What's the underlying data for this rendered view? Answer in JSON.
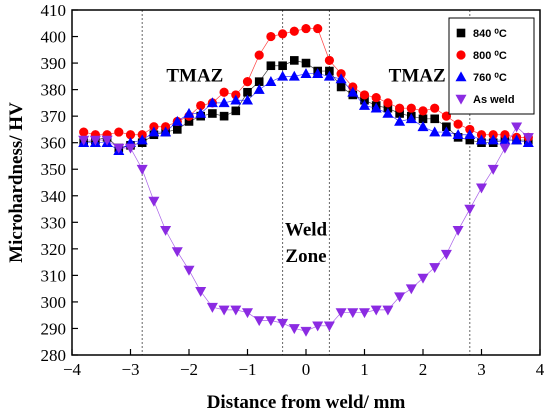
{
  "chart_data": {
    "type": "scatter",
    "xlabel": "Distance from weld/ mm",
    "ylabel": "Microhardness/ HV",
    "xlim": [
      -4,
      4
    ],
    "ylim": [
      280,
      410
    ],
    "xticks": [
      -4,
      -3,
      -2,
      -1,
      0,
      1,
      2,
      3,
      4
    ],
    "yticks": [
      280,
      290,
      300,
      310,
      320,
      330,
      340,
      350,
      360,
      370,
      380,
      390,
      400,
      410
    ],
    "grid": false,
    "legend_position": "top-right",
    "vlines": [
      -2.8,
      -0.4,
      0.4,
      2.8
    ],
    "annotations": [
      {
        "text": "TMAZ",
        "x": -1.9,
        "y": 383
      },
      {
        "text": "TMAZ",
        "x": 1.9,
        "y": 383
      },
      {
        "text": "Weld",
        "x": 0,
        "y": 325
      },
      {
        "text": "Zone",
        "x": 0,
        "y": 315
      }
    ],
    "series": [
      {
        "name": "840 ⁰C",
        "marker": "square",
        "color": "#000000",
        "x": [
          -3.8,
          -3.6,
          -3.4,
          -3.2,
          -3.0,
          -2.8,
          -2.6,
          -2.4,
          -2.2,
          -2.0,
          -1.8,
          -1.6,
          -1.4,
          -1.2,
          -1.0,
          -0.8,
          -0.6,
          -0.4,
          -0.2,
          0.0,
          0.2,
          0.4,
          0.6,
          0.8,
          1.0,
          1.2,
          1.4,
          1.6,
          1.8,
          2.0,
          2.2,
          2.4,
          2.6,
          2.8,
          3.0,
          3.2,
          3.4,
          3.6,
          3.8
        ],
        "y": [
          360,
          361,
          362,
          358,
          359,
          360,
          363,
          364,
          365,
          368,
          370,
          371,
          370,
          372,
          379,
          383,
          389,
          389,
          391,
          390,
          387,
          387,
          381,
          378,
          376,
          374,
          373,
          371,
          370,
          369,
          369,
          366,
          362,
          361,
          360,
          360,
          361,
          361,
          361
        ]
      },
      {
        "name": "800 ⁰C",
        "marker": "circle",
        "color": "#ff0000",
        "x": [
          -3.8,
          -3.6,
          -3.4,
          -3.2,
          -3.0,
          -2.8,
          -2.6,
          -2.4,
          -2.2,
          -2.0,
          -1.8,
          -1.6,
          -1.4,
          -1.2,
          -1.0,
          -0.8,
          -0.6,
          -0.4,
          -0.2,
          0.0,
          0.2,
          0.4,
          0.6,
          0.8,
          1.0,
          1.2,
          1.4,
          1.6,
          1.8,
          2.0,
          2.2,
          2.4,
          2.6,
          2.8,
          3.0,
          3.2,
          3.4,
          3.6,
          3.8
        ],
        "y": [
          364,
          363,
          363,
          364,
          363,
          363,
          366,
          366,
          368,
          370,
          374,
          375,
          379,
          378,
          383,
          393,
          400,
          401,
          402,
          403,
          403,
          391,
          386,
          381,
          378,
          377,
          375,
          373,
          373,
          372,
          373,
          370,
          367,
          365,
          363,
          363,
          363,
          362,
          362
        ]
      },
      {
        "name": "760 ⁰C",
        "marker": "triangle",
        "color": "#0000ff",
        "x": [
          -3.8,
          -3.6,
          -3.4,
          -3.2,
          -3.0,
          -2.8,
          -2.6,
          -2.4,
          -2.2,
          -2.0,
          -1.8,
          -1.6,
          -1.4,
          -1.2,
          -1.0,
          -0.8,
          -0.6,
          -0.4,
          -0.2,
          0.0,
          0.2,
          0.4,
          0.6,
          0.8,
          1.0,
          1.2,
          1.4,
          1.6,
          1.8,
          2.0,
          2.2,
          2.4,
          2.6,
          2.8,
          3.0,
          3.2,
          3.4,
          3.6,
          3.8
        ],
        "y": [
          360,
          360,
          360,
          357,
          360,
          361,
          364,
          364,
          368,
          371,
          371,
          375,
          375,
          376,
          376,
          380,
          383,
          385,
          385,
          386,
          386,
          385,
          384,
          379,
          374,
          373,
          371,
          368,
          369,
          366,
          364,
          364,
          363,
          363,
          361,
          361,
          361,
          361,
          360
        ]
      },
      {
        "name": "As weld",
        "marker": "triangle-down",
        "color": "#8b2be2",
        "x": [
          -3.8,
          -3.6,
          -3.4,
          -3.2,
          -3.0,
          -2.8,
          -2.6,
          -2.4,
          -2.2,
          -2.0,
          -1.8,
          -1.6,
          -1.4,
          -1.2,
          -1.0,
          -0.8,
          -0.6,
          -0.4,
          -0.2,
          0.0,
          0.2,
          0.4,
          0.6,
          0.8,
          1.0,
          1.2,
          1.4,
          1.6,
          1.8,
          2.0,
          2.2,
          2.4,
          2.6,
          2.8,
          3.0,
          3.2,
          3.4,
          3.6,
          3.8
        ],
        "y": [
          361,
          361,
          361,
          358,
          358,
          350,
          338,
          327,
          319,
          312,
          304,
          298,
          297,
          297,
          296,
          293,
          293,
          292,
          290,
          289,
          291,
          291,
          296,
          296,
          296,
          297,
          297,
          302,
          305,
          309,
          313,
          318,
          327,
          335,
          343,
          350,
          358,
          366,
          362
        ]
      }
    ]
  }
}
